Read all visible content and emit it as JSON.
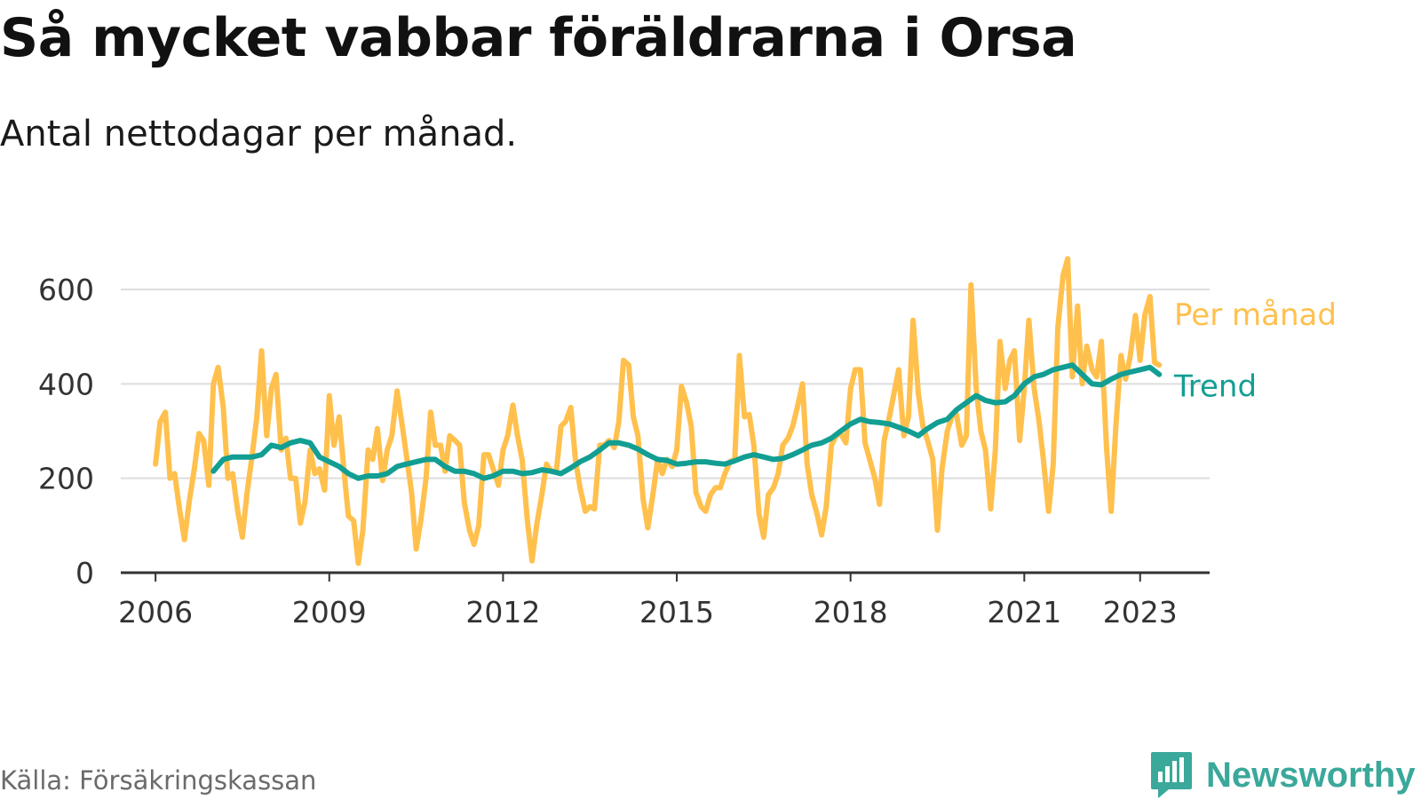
{
  "title": "Så mycket vabbar föräldrarna i Orsa",
  "subtitle": "Antal nettodagar per månad.",
  "source": "Källa: Försäkringskassan",
  "brand": {
    "name": "Newsworthy",
    "icon": "newsworthy-logo-icon",
    "color": "#3aa89a"
  },
  "colors": {
    "monthly": "#ffc04d",
    "trend": "#129e93",
    "grid": "#dddddd",
    "axis": "#333333"
  },
  "chart_data": {
    "type": "line",
    "title": "Så mycket vabbar föräldrarna i Orsa",
    "subtitle": "Antal nettodagar per månad.",
    "xlabel": "",
    "ylabel": "",
    "xlim": [
      2005.4,
      2024.2
    ],
    "ylim": [
      0,
      600
    ],
    "y_ticks": [
      0,
      200,
      400,
      600
    ],
    "x_ticks": [
      {
        "value": 2006,
        "label": "2006"
      },
      {
        "value": 2009,
        "label": "2009"
      },
      {
        "value": 2012,
        "label": "2012"
      },
      {
        "value": 2015,
        "label": "2015"
      },
      {
        "value": 2018,
        "label": "2018"
      },
      {
        "value": 2021,
        "label": "2021"
      },
      {
        "value": 2023,
        "label": "2023"
      }
    ],
    "grid": true,
    "legend": "inline-right",
    "series": [
      {
        "name": "Per månad",
        "x": [
          2006.0,
          2006.08,
          2006.17,
          2006.25,
          2006.33,
          2006.42,
          2006.5,
          2006.58,
          2006.67,
          2006.75,
          2006.83,
          2006.92,
          2007.0,
          2007.08,
          2007.17,
          2007.25,
          2007.33,
          2007.42,
          2007.5,
          2007.58,
          2007.67,
          2007.75,
          2007.83,
          2007.92,
          2008.0,
          2008.08,
          2008.17,
          2008.25,
          2008.33,
          2008.42,
          2008.5,
          2008.58,
          2008.67,
          2008.75,
          2008.83,
          2008.92,
          2009.0,
          2009.08,
          2009.17,
          2009.25,
          2009.33,
          2009.42,
          2009.5,
          2009.58,
          2009.67,
          2009.75,
          2009.83,
          2009.92,
          2010.0,
          2010.08,
          2010.17,
          2010.25,
          2010.33,
          2010.42,
          2010.5,
          2010.58,
          2010.67,
          2010.75,
          2010.83,
          2010.92,
          2011.0,
          2011.08,
          2011.17,
          2011.25,
          2011.33,
          2011.42,
          2011.5,
          2011.58,
          2011.67,
          2011.75,
          2011.83,
          2011.92,
          2012.0,
          2012.08,
          2012.17,
          2012.25,
          2012.33,
          2012.42,
          2012.5,
          2012.58,
          2012.67,
          2012.75,
          2012.83,
          2012.92,
          2013.0,
          2013.08,
          2013.17,
          2013.25,
          2013.33,
          2013.42,
          2013.5,
          2013.58,
          2013.67,
          2013.75,
          2013.83,
          2013.92,
          2014.0,
          2014.08,
          2014.17,
          2014.25,
          2014.33,
          2014.42,
          2014.5,
          2014.58,
          2014.67,
          2014.75,
          2014.83,
          2014.92,
          2015.0,
          2015.08,
          2015.17,
          2015.25,
          2015.33,
          2015.42,
          2015.5,
          2015.58,
          2015.67,
          2015.75,
          2015.83,
          2015.92,
          2016.0,
          2016.08,
          2016.17,
          2016.25,
          2016.33,
          2016.42,
          2016.5,
          2016.58,
          2016.67,
          2016.75,
          2016.83,
          2016.92,
          2017.0,
          2017.08,
          2017.17,
          2017.25,
          2017.33,
          2017.42,
          2017.5,
          2017.58,
          2017.67,
          2017.75,
          2017.83,
          2017.92,
          2018.0,
          2018.08,
          2018.17,
          2018.25,
          2018.33,
          2018.42,
          2018.5,
          2018.58,
          2018.67,
          2018.75,
          2018.83,
          2018.92,
          2019.0,
          2019.08,
          2019.17,
          2019.25,
          2019.33,
          2019.42,
          2019.5,
          2019.58,
          2019.67,
          2019.75,
          2019.83,
          2019.92,
          2020.0,
          2020.08,
          2020.17,
          2020.25,
          2020.33,
          2020.42,
          2020.5,
          2020.58,
          2020.67,
          2020.75,
          2020.83,
          2020.92,
          2021.0,
          2021.08,
          2021.17,
          2021.25,
          2021.33,
          2021.42,
          2021.5,
          2021.58,
          2021.67,
          2021.75,
          2021.83,
          2021.92,
          2022.0,
          2022.08,
          2022.17,
          2022.25,
          2022.33,
          2022.42,
          2022.5,
          2022.58,
          2022.67,
          2022.75,
          2022.83,
          2022.92,
          2023.0,
          2023.08,
          2023.17,
          2023.25,
          2023.33
        ],
        "values": [
          230,
          320,
          340,
          200,
          210,
          130,
          70,
          150,
          220,
          295,
          280,
          185,
          400,
          435,
          350,
          200,
          210,
          130,
          75,
          170,
          250,
          330,
          470,
          290,
          390,
          420,
          260,
          285,
          200,
          200,
          105,
          150,
          260,
          210,
          220,
          175,
          375,
          270,
          330,
          220,
          120,
          110,
          20,
          90,
          260,
          240,
          305,
          195,
          260,
          290,
          385,
          320,
          250,
          170,
          50,
          110,
          200,
          340,
          270,
          270,
          215,
          290,
          280,
          270,
          150,
          90,
          60,
          100,
          250,
          250,
          220,
          185,
          260,
          290,
          355,
          290,
          240,
          110,
          25,
          100,
          165,
          230,
          215,
          215,
          310,
          320,
          350,
          240,
          180,
          130,
          140,
          135,
          270,
          270,
          280,
          265,
          320,
          450,
          440,
          330,
          290,
          155,
          95,
          160,
          240,
          210,
          240,
          225,
          260,
          395,
          360,
          310,
          170,
          140,
          130,
          165,
          180,
          180,
          210,
          235,
          240,
          460,
          330,
          335,
          270,
          125,
          75,
          165,
          180,
          210,
          270,
          285,
          310,
          350,
          400,
          230,
          165,
          125,
          80,
          140,
          270,
          290,
          295,
          275,
          390,
          430,
          430,
          275,
          240,
          200,
          145,
          280,
          330,
          380,
          430,
          290,
          330,
          535,
          380,
          310,
          280,
          240,
          90,
          220,
          300,
          330,
          335,
          270,
          290,
          610,
          390,
          300,
          260,
          135,
          260,
          490,
          390,
          450,
          470,
          280,
          390,
          535,
          390,
          325,
          240,
          130,
          230,
          520,
          630,
          665,
          415,
          565,
          400,
          480,
          430,
          415,
          490,
          265,
          130,
          310,
          460,
          410,
          460,
          545,
          450,
          545,
          585,
          445,
          440
        ]
      },
      {
        "name": "Trend",
        "x": [
          2007.0,
          2007.17,
          2007.33,
          2007.5,
          2007.67,
          2007.83,
          2008.0,
          2008.17,
          2008.33,
          2008.5,
          2008.67,
          2008.83,
          2009.0,
          2009.17,
          2009.33,
          2009.5,
          2009.67,
          2009.83,
          2010.0,
          2010.17,
          2010.33,
          2010.5,
          2010.67,
          2010.83,
          2011.0,
          2011.17,
          2011.33,
          2011.5,
          2011.67,
          2011.83,
          2012.0,
          2012.17,
          2012.33,
          2012.5,
          2012.67,
          2012.83,
          2013.0,
          2013.17,
          2013.33,
          2013.5,
          2013.67,
          2013.83,
          2014.0,
          2014.17,
          2014.33,
          2014.5,
          2014.67,
          2014.83,
          2015.0,
          2015.17,
          2015.33,
          2015.5,
          2015.67,
          2015.83,
          2016.0,
          2016.17,
          2016.33,
          2016.5,
          2016.67,
          2016.83,
          2017.0,
          2017.17,
          2017.33,
          2017.5,
          2017.67,
          2017.83,
          2018.0,
          2018.17,
          2018.33,
          2018.5,
          2018.67,
          2018.83,
          2019.0,
          2019.17,
          2019.33,
          2019.5,
          2019.67,
          2019.83,
          2020.0,
          2020.17,
          2020.33,
          2020.5,
          2020.67,
          2020.83,
          2021.0,
          2021.17,
          2021.33,
          2021.5,
          2021.67,
          2021.83,
          2022.0,
          2022.17,
          2022.33,
          2022.5,
          2022.67,
          2022.83,
          2023.0,
          2023.17,
          2023.33
        ],
        "values": [
          215,
          240,
          245,
          245,
          245,
          250,
          270,
          265,
          275,
          280,
          275,
          245,
          235,
          225,
          210,
          200,
          205,
          205,
          210,
          225,
          230,
          235,
          240,
          240,
          225,
          215,
          215,
          210,
          200,
          205,
          215,
          215,
          210,
          212,
          218,
          215,
          210,
          222,
          235,
          245,
          260,
          275,
          275,
          270,
          262,
          250,
          240,
          238,
          230,
          232,
          235,
          235,
          232,
          230,
          237,
          245,
          250,
          245,
          240,
          242,
          250,
          260,
          270,
          275,
          285,
          300,
          315,
          325,
          320,
          318,
          315,
          308,
          300,
          290,
          305,
          318,
          325,
          345,
          360,
          375,
          365,
          360,
          362,
          375,
          400,
          415,
          420,
          430,
          435,
          440,
          420,
          400,
          398,
          410,
          420,
          425,
          430,
          435,
          420
        ]
      }
    ],
    "labels": [
      {
        "series": "Per månad",
        "text": "Per månad",
        "color": "#ffc04d"
      },
      {
        "series": "Trend",
        "text": "Trend",
        "color": "#129e93"
      }
    ]
  }
}
